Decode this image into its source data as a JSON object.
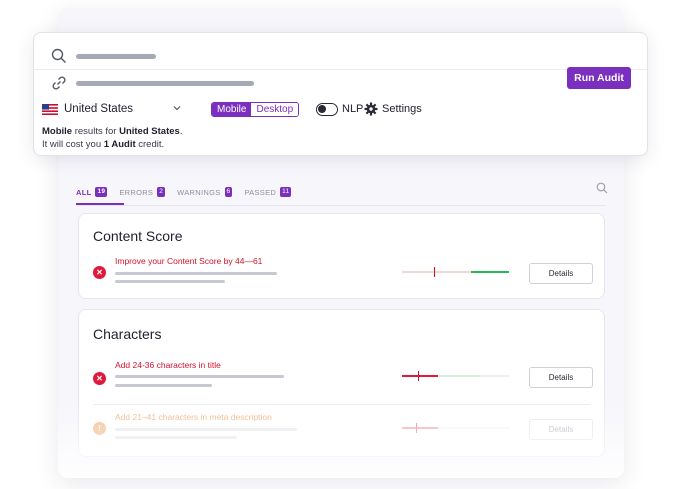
{
  "search": {
    "run_audit_label": "Run Audit"
  },
  "options": {
    "country": "United States",
    "device_options": [
      "Mobile",
      "Desktop"
    ],
    "device_selected": "Mobile",
    "nlp_label": "NLP",
    "settings_label": "Settings"
  },
  "note": {
    "device": "Mobile",
    "results_for": " results for ",
    "country": "United States",
    "period": ".",
    "cost_prefix": "It will cost you ",
    "cost_amount": "1 Audit",
    "cost_suffix": " credit."
  },
  "tabs": [
    {
      "label": "ALL",
      "count": "19"
    },
    {
      "label": "ERRORS",
      "count": "2"
    },
    {
      "label": "WARNINGS",
      "count": "6"
    },
    {
      "label": "PASSED",
      "count": "11"
    }
  ],
  "sections": [
    {
      "title": "Content Score",
      "issues": [
        {
          "title": "Improve your Content Score by 44—61",
          "severity": "error",
          "details_label": "Details"
        }
      ]
    },
    {
      "title": "Characters",
      "issues": [
        {
          "title": "Add 24-36 characters in title",
          "severity": "error",
          "details_label": "Details"
        },
        {
          "title": "Add 21–41 characters in meta description",
          "severity": "warning",
          "details_label": "Details"
        }
      ]
    }
  ],
  "colors": {
    "accent": "#7b2fbe",
    "error": "#e0193a",
    "warning": "#f0b27a",
    "good": "#22bb55"
  }
}
